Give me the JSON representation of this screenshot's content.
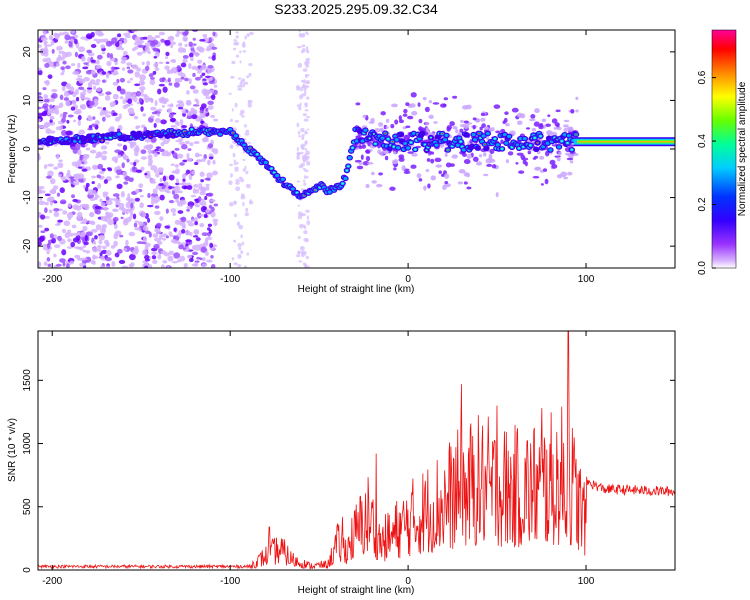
{
  "figure": {
    "title": "S233.2025.295.09.32.C34"
  },
  "chart_data": [
    {
      "type": "heatmap",
      "xlabel": "Height of straight line (km)",
      "ylabel": "Frequency (Hz)",
      "xlim": [
        -208,
        150
      ],
      "ylim": [
        -24.5,
        24.5
      ],
      "xticks": [
        -200,
        -100,
        0,
        100
      ],
      "yticks": [
        -20,
        -10,
        0,
        10,
        20
      ],
      "colorbar": {
        "label": "Normalized spectral amplitude",
        "range": [
          0,
          0.75
        ],
        "ticks": [
          0.0,
          0.2,
          0.4,
          0.6
        ],
        "colors": [
          "#ffffff",
          "#cc99ff",
          "#6600ff",
          "#0000ff",
          "#00ffff",
          "#00ff66",
          "#aaff00",
          "#ffaa00",
          "#ff0000",
          "#ff0099"
        ]
      },
      "ridge": {
        "description_points_x": [
          -208,
          -120,
          -100,
          -80,
          -70,
          -60,
          -50,
          -45,
          -40,
          -35,
          -30,
          0,
          40,
          80,
          95,
          150
        ],
        "frequency_y": [
          1.5,
          3.5,
          3.5,
          -3,
          -7,
          -10,
          -7.5,
          -8.5,
          -8,
          -6,
          2.5,
          1.5,
          1.5,
          1.5,
          1.5,
          1.5
        ]
      },
      "colors": {
        "noise": "#9966ff",
        "ridge_low": "#5500ff",
        "ridge_mid": "#00ffee",
        "ridge_high": "#ff2200",
        "steady": "#33ff33"
      }
    },
    {
      "type": "line",
      "xlabel": "Height of straight line (km)",
      "ylabel": "SNR (10 * v/v)",
      "xlim": [
        -208,
        150
      ],
      "ylim": [
        0,
        1890
      ],
      "xticks": [
        -200,
        -100,
        0,
        100
      ],
      "yticks": [
        0,
        500,
        1000,
        1500
      ],
      "series": [
        {
          "color": "#ee1111",
          "envelope_x": [
            -208,
            -90,
            -80,
            -72,
            -65,
            -55,
            -45,
            -40,
            -35,
            -28,
            -22,
            -15,
            -5,
            0,
            10,
            20,
            30,
            40,
            50,
            60,
            70,
            80,
            90,
            100,
            110,
            150
          ],
          "envelope_y": [
            30,
            40,
            200,
            300,
            150,
            60,
            80,
            380,
            300,
            600,
            800,
            400,
            600,
            700,
            850,
            1000,
            1150,
            1250,
            1200,
            1150,
            1200,
            1250,
            1350,
            700,
            640,
            620
          ],
          "peaks": [
            {
              "x": -78,
              "y": 340
            },
            {
              "x": -37,
              "y": 420
            },
            {
              "x": -18,
              "y": 920
            },
            {
              "x": 30,
              "y": 1470
            },
            {
              "x": 50,
              "y": 1300
            },
            {
              "x": 75,
              "y": 1280
            },
            {
              "x": 90,
              "y": 1890
            }
          ]
        }
      ]
    }
  ]
}
